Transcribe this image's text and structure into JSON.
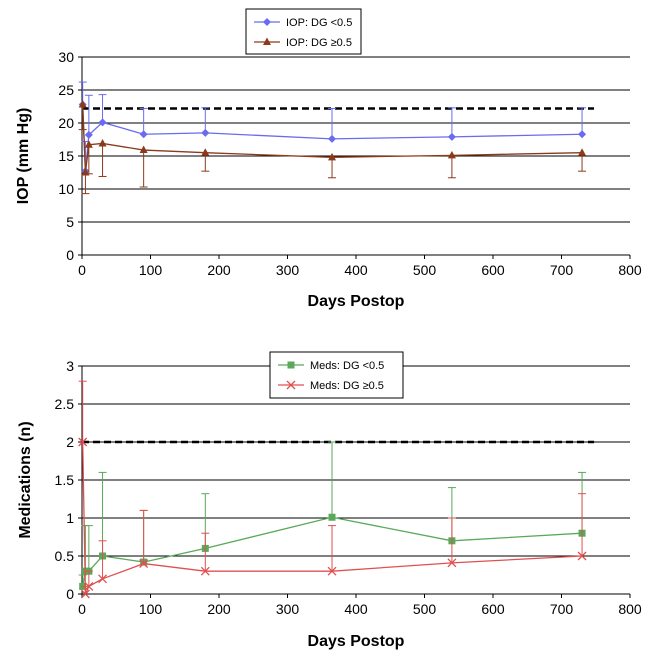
{
  "chart_data": [
    {
      "type": "line",
      "xlabel": "Days Postop",
      "ylabel": "IOP (mm Hg)",
      "xlim": [
        0,
        800
      ],
      "ylim": [
        0,
        30
      ],
      "x_ticks": [
        "0",
        "100",
        "200",
        "300",
        "400",
        "500",
        "600",
        "700",
        "800"
      ],
      "y_ticks": [
        "0",
        "5",
        "10",
        "15",
        "20",
        "25",
        "30"
      ],
      "grid": "horizontal",
      "legend_placement": "top-center",
      "reference_line": {
        "y": 22.2,
        "style": "dashed",
        "color": "#000000"
      },
      "series": [
        {
          "name": "IOP: DG <0.5",
          "color": "#6b6bef",
          "marker": "diamond",
          "errorbar_direction": "up",
          "x": [
            1,
            5,
            10,
            30,
            90,
            180,
            365,
            540,
            730
          ],
          "y": [
            22.8,
            12.7,
            18.2,
            20.1,
            18.3,
            18.5,
            17.6,
            17.9,
            18.3
          ],
          "err_to": [
            26.2,
            17.2,
            24.2,
            24.3,
            22.2,
            22.3,
            22.2,
            22.3,
            22.3
          ]
        },
        {
          "name": "IOP: DG ≥0.5",
          "color": "#8b3a1a",
          "marker": "triangle",
          "errorbar_direction": "down",
          "x": [
            1,
            5,
            10,
            30,
            90,
            180,
            365,
            540,
            730
          ],
          "y": [
            22.8,
            12.5,
            16.7,
            16.9,
            15.9,
            15.5,
            14.8,
            15.1,
            15.5
          ],
          "err_to": [
            19.0,
            9.3,
            12.3,
            11.9,
            10.3,
            12.7,
            11.7,
            11.7,
            12.7
          ]
        }
      ]
    },
    {
      "type": "line",
      "xlabel": "Days Postop",
      "ylabel": "Medications (n)",
      "xlim": [
        0,
        800
      ],
      "ylim": [
        0,
        3
      ],
      "x_ticks": [
        "0",
        "100",
        "200",
        "300",
        "400",
        "500",
        "600",
        "700",
        "800"
      ],
      "y_ticks": [
        "0",
        "0.5",
        "1",
        "1.5",
        "2",
        "2.5",
        "3"
      ],
      "grid": "horizontal",
      "legend_placement": "top-center",
      "reference_line": {
        "y": 2.0,
        "style": "dashed",
        "color": "#000000"
      },
      "series": [
        {
          "name": "Meds: DG <0.5",
          "color": "#5aa85a",
          "marker": "square",
          "errorbar_direction": "up",
          "x": [
            1,
            5,
            10,
            30,
            90,
            180,
            365,
            540,
            730
          ],
          "y": [
            0.1,
            0.3,
            0.3,
            0.5,
            0.42,
            0.6,
            1.01,
            0.7,
            0.8
          ],
          "err_to": [
            0.25,
            0.9,
            0.9,
            1.6,
            1.1,
            1.32,
            2.0,
            1.4,
            1.6
          ]
        },
        {
          "name": "Meds: DG ≥0.5",
          "color": "#e05050",
          "marker": "x",
          "errorbar_direction": "up",
          "x": [
            1,
            5,
            10,
            30,
            90,
            180,
            365,
            540,
            730
          ],
          "y": [
            2.0,
            0.0,
            0.1,
            0.2,
            0.4,
            0.3,
            0.3,
            0.41,
            0.5
          ],
          "err_to": [
            2.8,
            0.1,
            0.3,
            0.7,
            1.1,
            0.8,
            0.9,
            1.0,
            1.32
          ]
        }
      ]
    }
  ]
}
